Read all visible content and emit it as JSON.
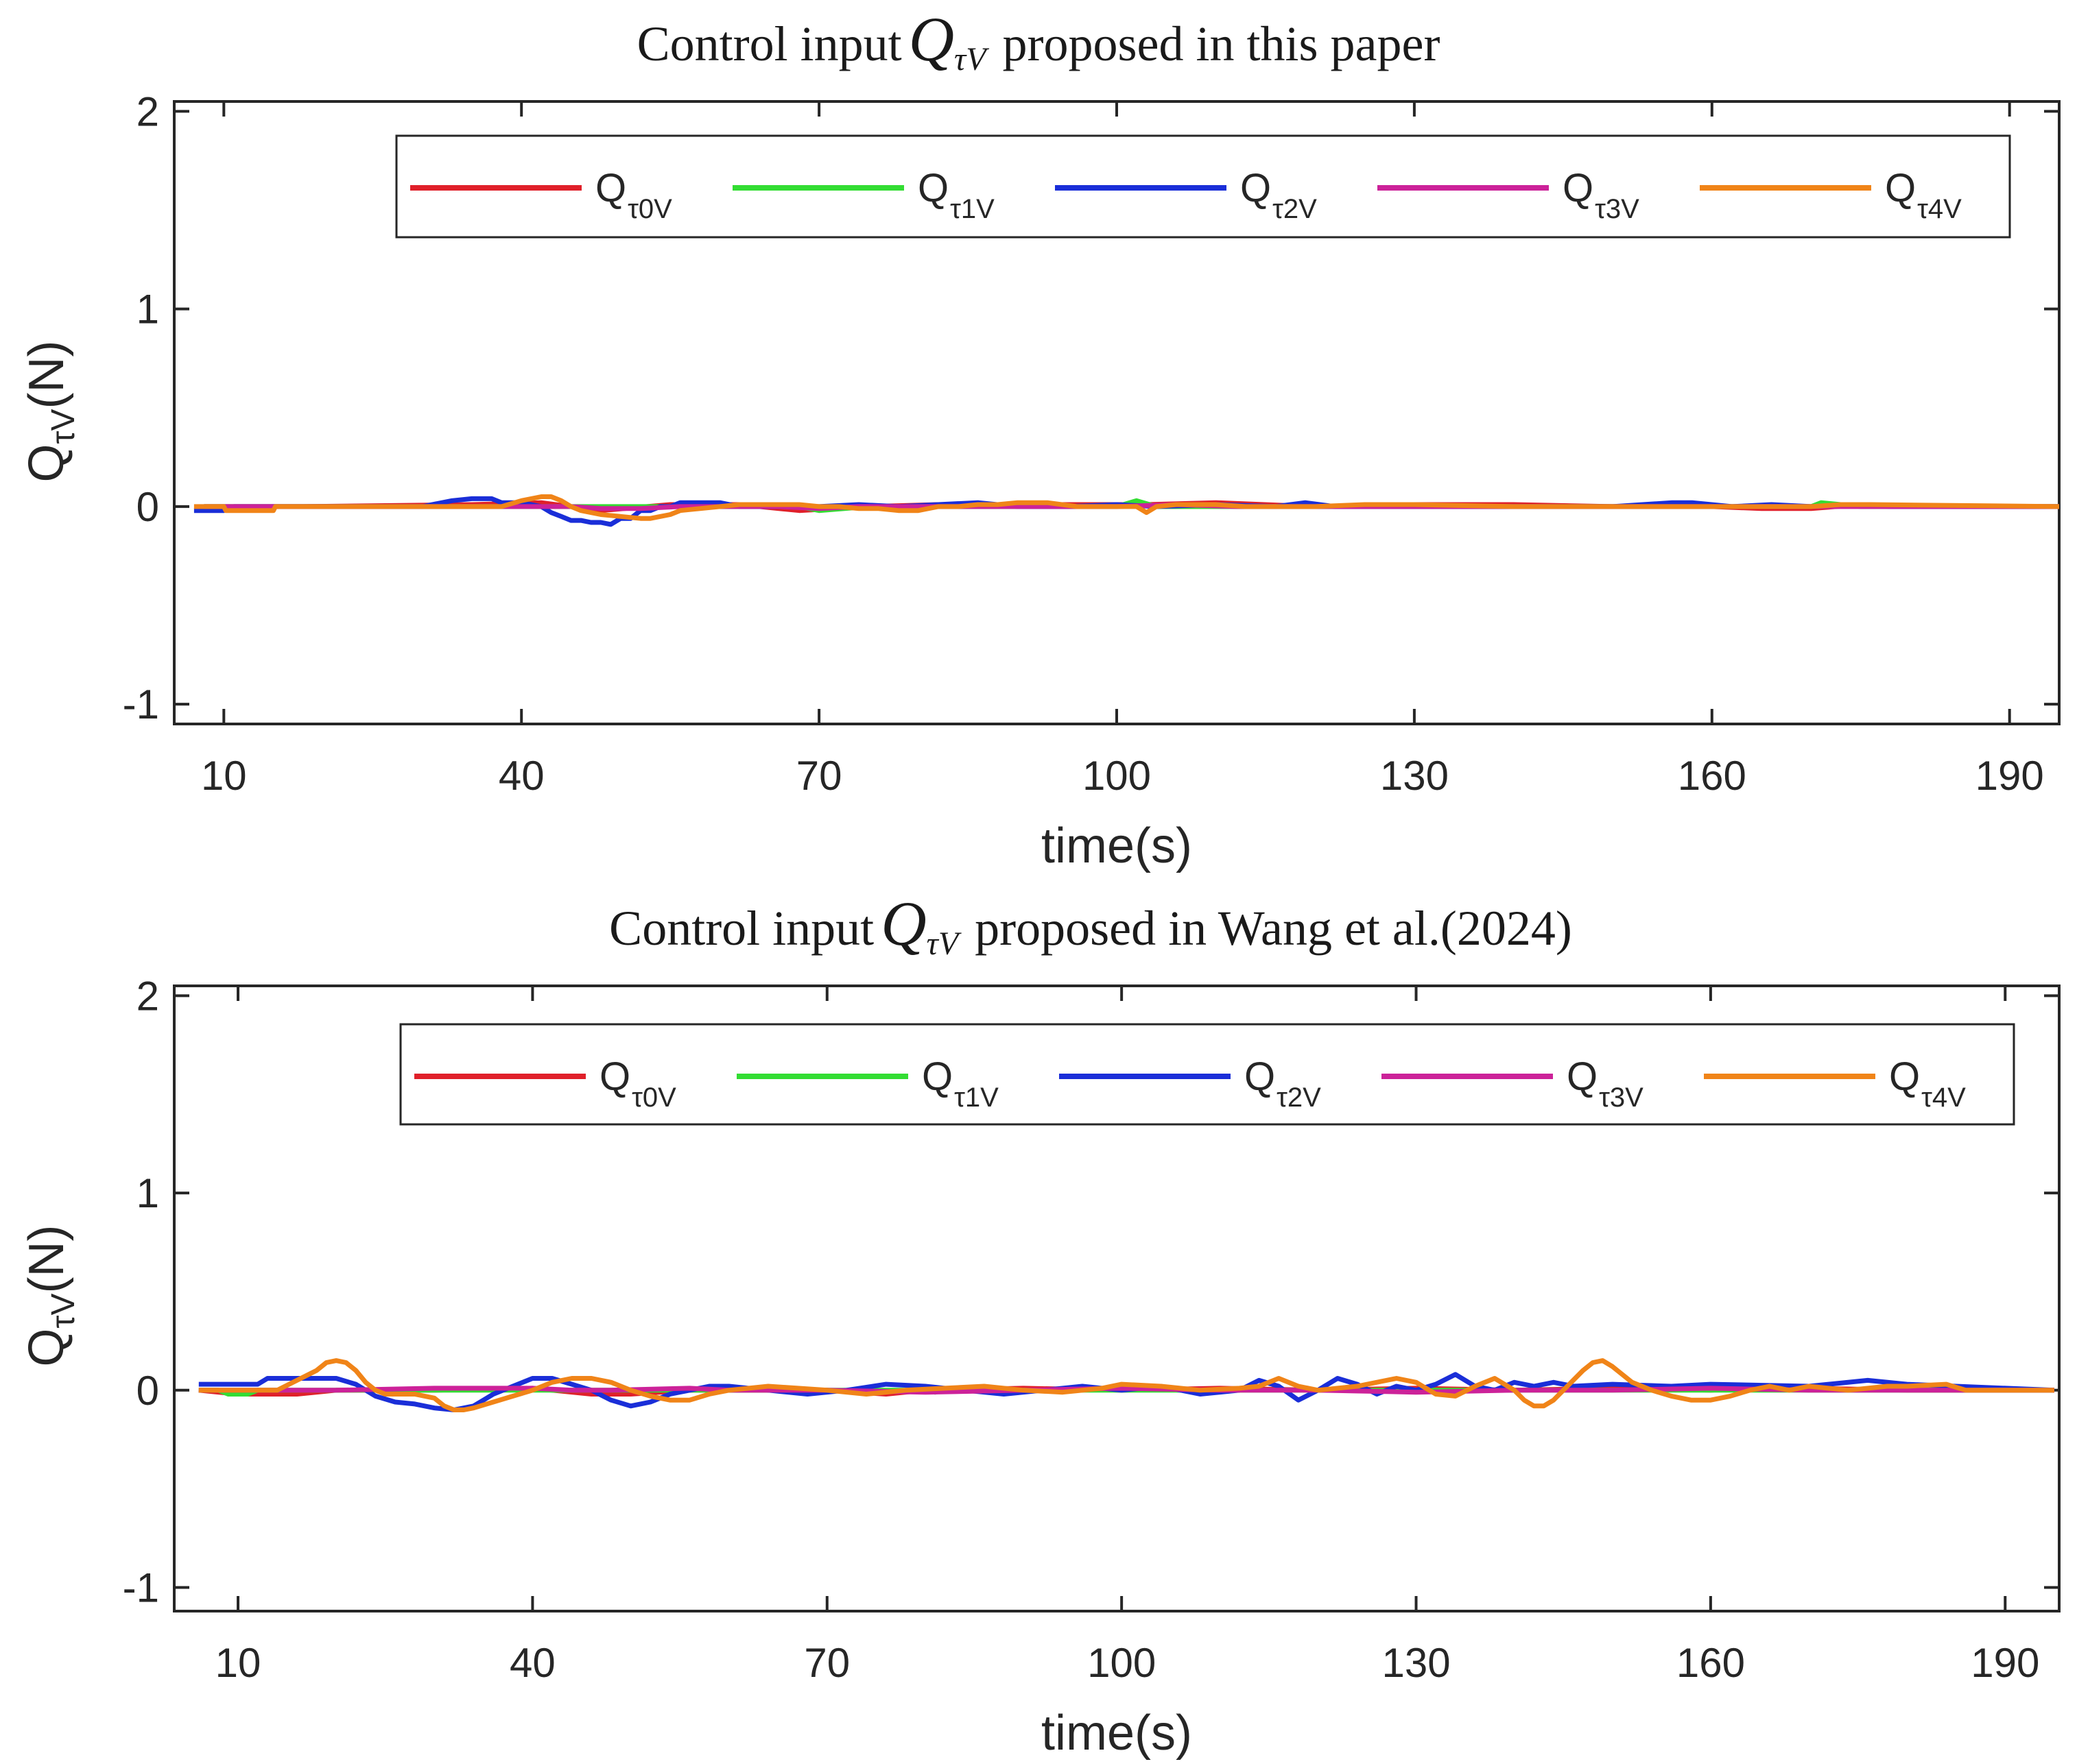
{
  "chart_data": [
    {
      "type": "line",
      "title": "Control input Q_τV proposed in this paper",
      "title_text_before": "Control input",
      "title_symbol": "Q",
      "title_symbol_sub": "τV",
      "title_text_after": "proposed in this paper",
      "xlabel": "time(s)",
      "ylabel": "Q_τV(N)",
      "ylabel_main": "Q",
      "ylabel_sub": "τV",
      "ylabel_unit": "(N)",
      "xlim": [
        5,
        195
      ],
      "ylim": [
        -1.1,
        2.05
      ],
      "xticks": [
        10,
        40,
        70,
        100,
        130,
        160,
        190
      ],
      "yticks": [
        -1,
        0,
        1,
        2
      ],
      "xtick_labels": [
        "10",
        "40",
        "70",
        "100",
        "130",
        "160",
        "190"
      ],
      "ytick_labels": [
        "-1",
        "0",
        "1",
        "2"
      ],
      "legend_position": "top-right",
      "series": [
        {
          "name": "Q_τ0V",
          "label_main": "Q",
          "label_sub": "τ0V",
          "color": "#e0202a",
          "x": [
            8,
            12,
            18,
            35,
            42,
            48,
            55,
            62,
            68,
            75,
            82,
            90,
            100,
            103,
            110,
            120,
            130,
            140,
            150,
            160,
            165,
            170,
            175,
            178,
            195
          ],
          "y": [
            0,
            0,
            0,
            0.01,
            0.02,
            -0.02,
            0.01,
            0.01,
            -0.02,
            0,
            0.01,
            0.01,
            0.01,
            0.01,
            0.02,
            0,
            0.01,
            0.01,
            0,
            0,
            -0.01,
            -0.01,
            0.01,
            0,
            0
          ]
        },
        {
          "name": "Q_τ1V",
          "label_main": "Q",
          "label_sub": "τ1V",
          "color": "#33dd33",
          "x": [
            8,
            12,
            20,
            40,
            55,
            68,
            70,
            75,
            90,
            100,
            102,
            104,
            120,
            140,
            160,
            170,
            171,
            175,
            195
          ],
          "y": [
            0,
            0,
            0,
            0,
            0,
            0,
            -0.02,
            0,
            0,
            0,
            0.03,
            0,
            0,
            0,
            0,
            0,
            0.02,
            0,
            0
          ]
        },
        {
          "name": "Q_τ2V",
          "label_main": "Q",
          "label_sub": "τ2V",
          "color": "#1a2ed8",
          "x": [
            7,
            9,
            10,
            11,
            12,
            30,
            33,
            35,
            37,
            38,
            40,
            42,
            43,
            44,
            45,
            46,
            47,
            48,
            49,
            50,
            51,
            52,
            53,
            54,
            55,
            56,
            57,
            58,
            60,
            62,
            66,
            70,
            74,
            78,
            82,
            86,
            90,
            95,
            100,
            104,
            110,
            116,
            119,
            122,
            126,
            130,
            140,
            146,
            150,
            156,
            158,
            162,
            166,
            170,
            174,
            178,
            180,
            195
          ],
          "y": [
            -0.02,
            -0.02,
            -0.02,
            0,
            0,
            0,
            0.03,
            0.04,
            0.04,
            0.02,
            0.02,
            0,
            -0.03,
            -0.05,
            -0.07,
            -0.07,
            -0.08,
            -0.08,
            -0.09,
            -0.06,
            -0.06,
            -0.02,
            -0.02,
            0,
            0,
            0.02,
            0.02,
            0.02,
            0.02,
            0,
            0,
            0,
            0.01,
            0,
            0.01,
            0.02,
            0,
            0,
            0.01,
            0,
            0.01,
            0,
            0.02,
            0,
            0,
            0,
            0,
            0,
            0,
            0.02,
            0.02,
            0,
            0.01,
            0,
            0.01,
            0,
            0,
            0
          ]
        },
        {
          "name": "Q_τ3V",
          "label_main": "Q",
          "label_sub": "τ3V",
          "color": "#cc2299",
          "x": [
            8,
            14,
            20,
            35,
            40,
            45,
            48,
            52,
            56,
            60,
            66,
            70,
            74,
            78,
            86,
            90,
            100,
            106,
            112,
            120,
            128,
            146,
            150,
            160,
            170,
            176,
            195
          ],
          "y": [
            0,
            0,
            0,
            0,
            0,
            0,
            -0.01,
            -0.01,
            0,
            0,
            0,
            -0.01,
            0,
            0,
            0,
            0,
            0,
            0.01,
            0,
            0,
            0,
            0,
            0,
            0,
            0,
            0,
            0
          ]
        },
        {
          "name": "Q_τ4V",
          "label_main": "Q",
          "label_sub": "τ4V",
          "color": "#f08418",
          "x": [
            7,
            10,
            10.2,
            15,
            15.2,
            38,
            40,
            42,
            43,
            44,
            45,
            46,
            48,
            50,
            52,
            53,
            55,
            56,
            58,
            60,
            62,
            64,
            68,
            70,
            72,
            74,
            76,
            78,
            80,
            82,
            84,
            86,
            88,
            90,
            93,
            96,
            100,
            102,
            103,
            104,
            106,
            110,
            113,
            116,
            120,
            125,
            130,
            140,
            146,
            150,
            160,
            170,
            173,
            176,
            195
          ],
          "y": [
            0,
            0,
            -0.02,
            -0.02,
            0,
            0,
            0.03,
            0.05,
            0.05,
            0.03,
            0,
            -0.02,
            -0.04,
            -0.05,
            -0.06,
            -0.06,
            -0.04,
            -0.02,
            -0.01,
            0,
            0.01,
            0.01,
            0.01,
            0,
            0,
            -0.01,
            -0.01,
            -0.02,
            -0.02,
            0,
            0,
            0.01,
            0.01,
            0.02,
            0.02,
            0,
            0,
            0,
            -0.03,
            0,
            0.01,
            0.01,
            0,
            0,
            0,
            0.01,
            0.01,
            0,
            0,
            0,
            0,
            0,
            0.01,
            0.01,
            0
          ]
        }
      ]
    },
    {
      "type": "line",
      "title": "Control input Q_τV proposed in Wang et al.(2024)",
      "title_text_before": "Control input",
      "title_symbol": "Q",
      "title_symbol_sub": "τV",
      "title_text_after": "proposed in Wang et al.(2024)",
      "xlabel": "time(s)",
      "ylabel": "Q_τV(N)",
      "ylabel_main": "Q",
      "ylabel_sub": "τV",
      "ylabel_unit": "(N)",
      "xlim": [
        3.5,
        195.5
      ],
      "ylim": [
        -1.12,
        2.05
      ],
      "xticks": [
        10,
        40,
        70,
        100,
        130,
        160,
        190
      ],
      "yticks": [
        -1,
        0,
        1,
        2
      ],
      "xtick_labels": [
        "10",
        "40",
        "70",
        "100",
        "130",
        "160",
        "190"
      ],
      "ytick_labels": [
        "-1",
        "0",
        "1",
        "2"
      ],
      "legend_position": "top-right",
      "series": [
        {
          "name": "Q_τ0V",
          "label_main": "Q",
          "label_sub": "τ0V",
          "color": "#e0202a",
          "x": [
            6,
            10,
            16,
            20,
            30,
            40,
            46,
            50,
            56,
            60,
            70,
            76,
            80,
            90,
            100,
            110,
            120,
            130,
            140,
            150,
            160,
            165,
            170,
            180,
            184,
            195
          ],
          "y": [
            0,
            -0.02,
            -0.02,
            0,
            0,
            0.01,
            -0.02,
            -0.02,
            0,
            0,
            0,
            -0.02,
            0,
            0.01,
            0,
            0.01,
            0,
            0.01,
            0,
            0.01,
            0,
            0.01,
            0.01,
            0,
            0,
            0
          ]
        },
        {
          "name": "Q_τ1V",
          "label_main": "Q",
          "label_sub": "τ1V",
          "color": "#33dd33",
          "x": [
            6,
            8,
            9,
            11,
            12,
            20,
            40,
            60,
            80,
            81,
            82,
            100,
            120,
            140,
            160,
            195
          ],
          "y": [
            0,
            0,
            -0.02,
            -0.02,
            0,
            0,
            0,
            0,
            0,
            -0.01,
            0,
            0,
            0,
            0,
            0,
            0
          ]
        },
        {
          "name": "Q_τ2V",
          "label_main": "Q",
          "label_sub": "τ2V",
          "color": "#1a2ed8",
          "x": [
            6,
            10,
            12,
            13,
            18,
            20,
            22,
            24,
            26,
            28,
            30,
            32,
            34,
            35,
            36,
            38,
            40,
            42,
            44,
            46,
            48,
            50,
            52,
            54,
            56,
            58,
            60,
            64,
            68,
            72,
            76,
            80,
            84,
            88,
            92,
            96,
            100,
            104,
            108,
            112,
            114,
            116,
            118,
            120,
            122,
            124,
            126,
            128,
            130,
            132,
            134,
            135,
            136,
            138,
            140,
            142,
            144,
            146,
            150,
            156,
            160,
            170,
            176,
            180,
            195
          ],
          "y": [
            0.03,
            0.03,
            0.03,
            0.06,
            0.06,
            0.06,
            0.03,
            -0.03,
            -0.06,
            -0.07,
            -0.09,
            -0.1,
            -0.08,
            -0.05,
            -0.02,
            0.02,
            0.06,
            0.06,
            0.03,
            0,
            -0.05,
            -0.08,
            -0.06,
            -0.02,
            0,
            0.02,
            0.02,
            0,
            -0.02,
            0,
            0.03,
            0.02,
            0,
            -0.02,
            0,
            0.02,
            0,
            0.02,
            -0.02,
            0,
            0.05,
            0.02,
            -0.05,
            0,
            0.06,
            0.03,
            -0.02,
            0.02,
            0,
            0.03,
            0.08,
            0.05,
            0.02,
            0,
            0.04,
            0.02,
            0.04,
            0.02,
            0.03,
            0.02,
            0.03,
            0.02,
            0.05,
            0.03,
            0
          ]
        },
        {
          "name": "Q_τ3V",
          "label_main": "Q",
          "label_sub": "τ3V",
          "color": "#cc2299",
          "x": [
            6,
            10,
            20,
            30,
            40,
            44,
            48,
            56,
            60,
            70,
            80,
            90,
            100,
            110,
            120,
            130,
            140,
            150,
            160,
            170,
            180,
            195
          ],
          "y": [
            0,
            0,
            0,
            0.01,
            0.01,
            0,
            0,
            0.01,
            0,
            0,
            -0.01,
            0,
            0.01,
            0,
            0,
            -0.01,
            0,
            0,
            0.01,
            0,
            0,
            0
          ]
        },
        {
          "name": "Q_τ4V",
          "label_main": "Q",
          "label_sub": "τ4V",
          "color": "#f08418",
          "x": [
            6,
            14,
            16,
            18,
            19,
            20,
            21,
            22,
            23,
            24,
            25,
            26,
            28,
            30,
            31,
            32,
            33,
            34,
            36,
            38,
            40,
            42,
            44,
            46,
            48,
            50,
            52,
            54,
            56,
            58,
            60,
            64,
            70,
            74,
            78,
            82,
            86,
            90,
            94,
            98,
            100,
            104,
            108,
            112,
            114,
            116,
            118,
            120,
            124,
            128,
            130,
            132,
            134,
            136,
            138,
            140,
            141,
            142,
            143,
            144,
            146,
            147,
            148,
            149,
            150,
            151,
            152,
            154,
            156,
            158,
            160,
            162,
            164,
            166,
            168,
            170,
            174,
            178,
            180,
            184,
            186,
            195
          ],
          "y": [
            0,
            0,
            0.05,
            0.1,
            0.14,
            0.15,
            0.14,
            0.1,
            0.04,
            0,
            -0.02,
            -0.02,
            -0.02,
            -0.04,
            -0.08,
            -0.1,
            -0.1,
            -0.09,
            -0.06,
            -0.03,
            0,
            0.04,
            0.06,
            0.06,
            0.04,
            0,
            -0.03,
            -0.05,
            -0.05,
            -0.02,
            0,
            0.02,
            0,
            -0.02,
            0,
            0.01,
            0.02,
            0,
            -0.01,
            0.01,
            0.03,
            0.02,
            0,
            0.01,
            0.02,
            0.06,
            0.02,
            0,
            0.02,
            0.06,
            0.04,
            -0.02,
            -0.03,
            0.02,
            0.06,
            0,
            -0.05,
            -0.08,
            -0.08,
            -0.05,
            0.05,
            0.1,
            0.14,
            0.15,
            0.12,
            0.08,
            0.04,
            0,
            -0.03,
            -0.05,
            -0.05,
            -0.03,
            0,
            0.02,
            0,
            0.02,
            0,
            0.02,
            0.02,
            0.03,
            0,
            0
          ]
        }
      ]
    }
  ]
}
